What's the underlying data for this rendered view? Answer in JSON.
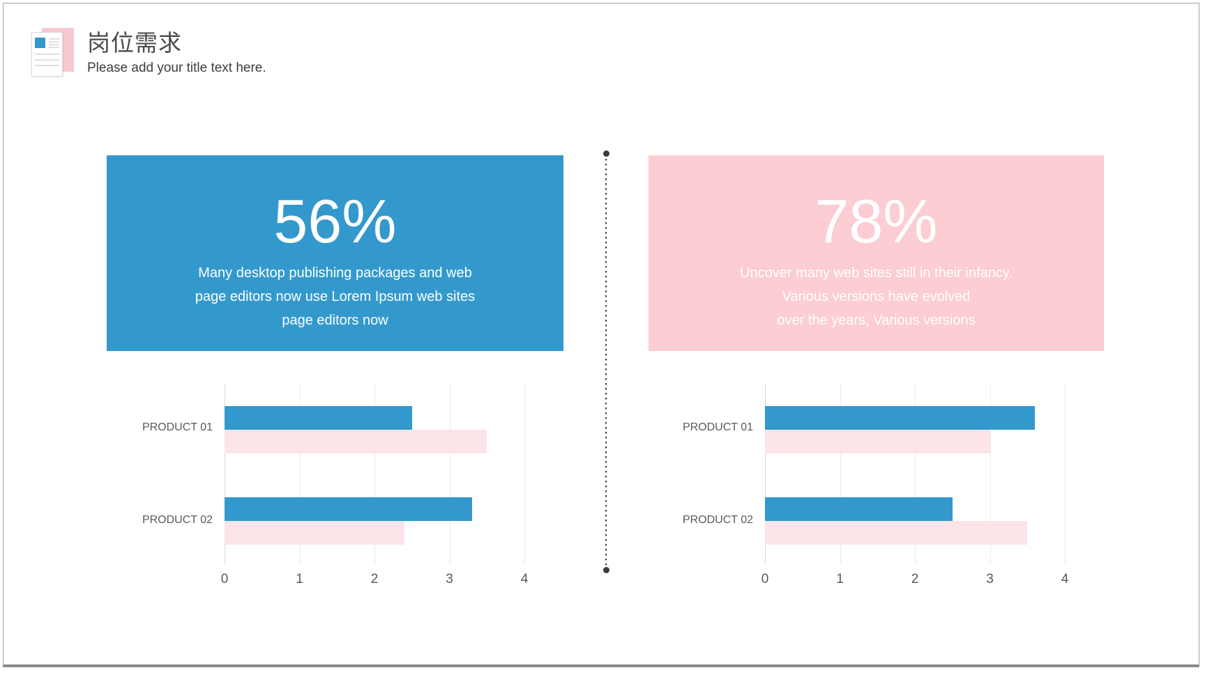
{
  "header": {
    "title": "岗位需求",
    "subtitle": "Please add your title text here."
  },
  "colors": {
    "blue": "#3399CC",
    "panel_pink": "#FCCDD3",
    "bar_pink": "#FCE4E8",
    "divider_dot": "#3A3A3A",
    "text_gray": "#595959"
  },
  "stats": [
    {
      "value": "56%",
      "lines": [
        "Many desktop publishing packages and web",
        "page editors now use Lorem Ipsum web sites",
        "page editors now"
      ]
    },
    {
      "value": "78%",
      "lines": [
        "Uncover many web sites still in their infancy.",
        "Various versions have evolved",
        "over the years, Various versions"
      ]
    }
  ],
  "chart_data": [
    {
      "type": "bar",
      "orientation": "horizontal",
      "title": "",
      "categories": [
        "PRODUCT 01",
        "PRODUCT 02"
      ],
      "series": [
        {
          "name": "blue",
          "color": "#3399CC",
          "values": [
            2.5,
            3.3
          ]
        },
        {
          "name": "pink",
          "color": "#FCE4E8",
          "values": [
            3.5,
            2.4
          ]
        }
      ],
      "xlim": [
        0,
        4
      ],
      "ticks": [
        "0",
        "1",
        "2",
        "3",
        "4"
      ],
      "grid": true,
      "legend": false
    },
    {
      "type": "bar",
      "orientation": "horizontal",
      "title": "",
      "categories": [
        "PRODUCT 01",
        "PRODUCT 02"
      ],
      "series": [
        {
          "name": "blue",
          "color": "#3399CC",
          "values": [
            3.6,
            2.5
          ]
        },
        {
          "name": "pink",
          "color": "#FCE4E8",
          "values": [
            3.0,
            3.5
          ]
        }
      ],
      "xlim": [
        0,
        4
      ],
      "ticks": [
        "0",
        "1",
        "2",
        "3",
        "4"
      ],
      "grid": true,
      "legend": false
    }
  ]
}
